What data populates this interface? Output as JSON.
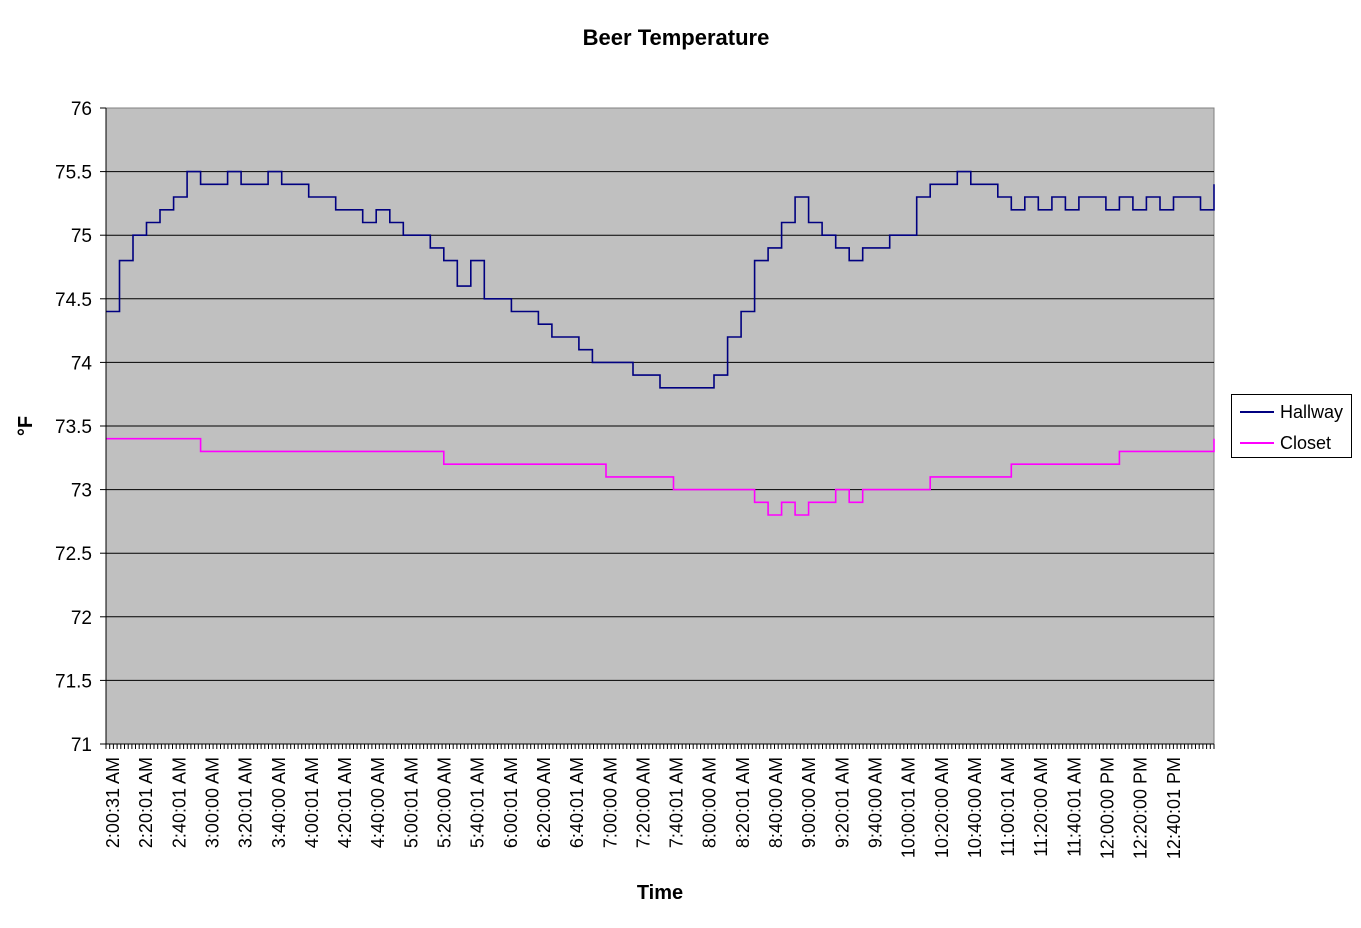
{
  "chart_data": {
    "type": "line",
    "title": "Beer Temperature",
    "xlabel": "Time",
    "ylabel": "°F",
    "ylim": [
      71,
      76
    ],
    "yticks": [
      "71",
      "71.5",
      "72",
      "72.5",
      "73",
      "73.5",
      "74",
      "74.5",
      "75",
      "75.5",
      "76"
    ],
    "xtick_labels": [
      "2:00:31 AM",
      "2:20:01 AM",
      "2:40:01 AM",
      "3:00:00 AM",
      "3:20:01 AM",
      "3:40:00 AM",
      "4:00:01 AM",
      "4:20:01 AM",
      "4:40:00 AM",
      "5:00:01 AM",
      "5:20:00 AM",
      "5:40:01 AM",
      "6:00:01 AM",
      "6:20:00 AM",
      "6:40:01 AM",
      "7:00:00 AM",
      "7:20:00 AM",
      "7:40:01 AM",
      "8:00:00 AM",
      "8:20:01 AM",
      "8:40:00 AM",
      "9:00:00 AM",
      "9:20:01 AM",
      "9:40:00 AM",
      "10:00:01 AM",
      "10:20:00 AM",
      "10:40:00 AM",
      "11:00:01 AM",
      "11:20:00 AM",
      "11:40:01 AM",
      "12:00:00 PM",
      "12:20:00 PM",
      "12:40:01 PM"
    ],
    "grid": true,
    "legend_position": "right",
    "plot_background": "#C0C0C0",
    "series": [
      {
        "name": "Hallway",
        "color": "#000080",
        "values": [
          74.4,
          74.8,
          75.0,
          75.1,
          75.2,
          75.3,
          75.5,
          75.4,
          75.4,
          75.5,
          75.4,
          75.4,
          75.5,
          75.4,
          75.4,
          75.3,
          75.3,
          75.2,
          75.2,
          75.1,
          75.2,
          75.1,
          75.0,
          75.0,
          74.9,
          74.8,
          74.6,
          74.8,
          74.5,
          74.5,
          74.4,
          74.4,
          74.3,
          74.2,
          74.2,
          74.1,
          74.0,
          74.0,
          74.0,
          73.9,
          73.9,
          73.8,
          73.8,
          73.8,
          73.8,
          73.9,
          74.2,
          74.4,
          74.8,
          74.9,
          75.1,
          75.3,
          75.1,
          75.0,
          74.9,
          74.8,
          74.9,
          74.9,
          75.0,
          75.0,
          75.3,
          75.4,
          75.4,
          75.5,
          75.4,
          75.4,
          75.3,
          75.2,
          75.3,
          75.2,
          75.3,
          75.2,
          75.3,
          75.3,
          75.2,
          75.3,
          75.2,
          75.3,
          75.2,
          75.3,
          75.3,
          75.2,
          75.4
        ]
      },
      {
        "name": "Closet",
        "color": "#FF00FF",
        "values": [
          73.4,
          73.4,
          73.4,
          73.4,
          73.4,
          73.4,
          73.4,
          73.3,
          73.3,
          73.3,
          73.3,
          73.3,
          73.3,
          73.3,
          73.3,
          73.3,
          73.3,
          73.3,
          73.3,
          73.3,
          73.3,
          73.3,
          73.3,
          73.3,
          73.3,
          73.2,
          73.2,
          73.2,
          73.2,
          73.2,
          73.2,
          73.2,
          73.2,
          73.2,
          73.2,
          73.2,
          73.2,
          73.1,
          73.1,
          73.1,
          73.1,
          73.1,
          73.0,
          73.0,
          73.0,
          73.0,
          73.0,
          73.0,
          72.9,
          72.8,
          72.9,
          72.8,
          72.9,
          72.9,
          73.0,
          72.9,
          73.0,
          73.0,
          73.0,
          73.0,
          73.0,
          73.1,
          73.1,
          73.1,
          73.1,
          73.1,
          73.1,
          73.2,
          73.2,
          73.2,
          73.2,
          73.2,
          73.2,
          73.2,
          73.2,
          73.3,
          73.3,
          73.3,
          73.3,
          73.3,
          73.3,
          73.3,
          73.4
        ]
      }
    ]
  }
}
